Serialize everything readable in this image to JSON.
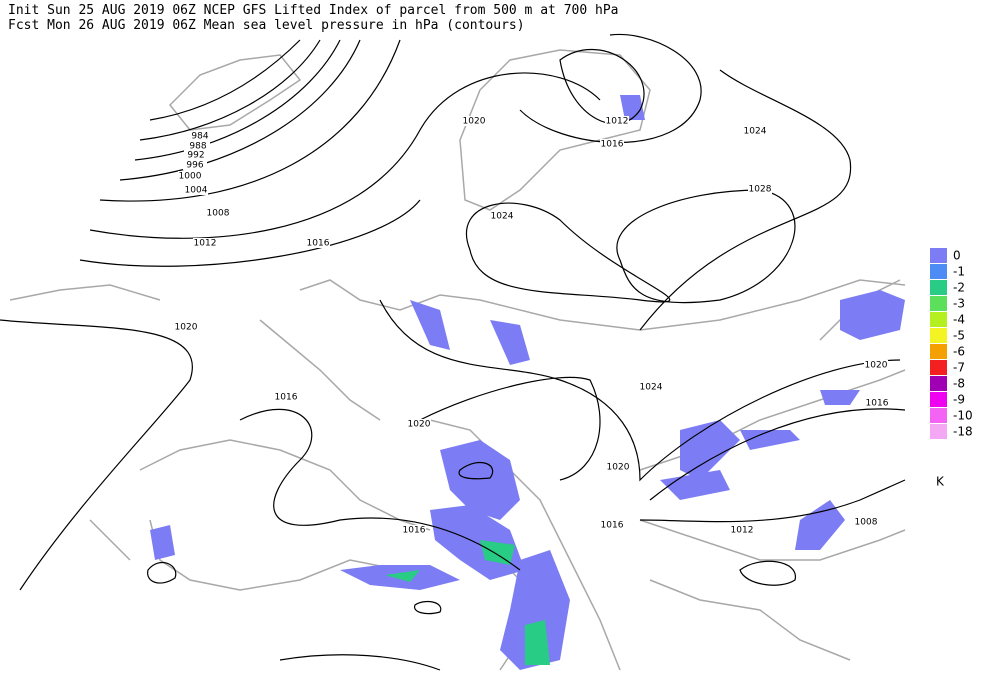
{
  "header": {
    "line1": "Init  Sun 25 AUG 2019 06Z  NCEP GFS Lifted Index of parcel from 500 m at 700 hPa",
    "line2": "Fcst Mon 26 AUG 2019 06Z  Mean sea level pressure in hPa (contours)"
  },
  "legend": {
    "items": [
      {
        "label": 0,
        "color": "#7c7cf4"
      },
      {
        "label": -1,
        "color": "#4c8cf4"
      },
      {
        "label": -2,
        "color": "#28cc84"
      },
      {
        "label": -3,
        "color": "#5ce05c"
      },
      {
        "label": -4,
        "color": "#b4f020"
      },
      {
        "label": -5,
        "color": "#f4f424"
      },
      {
        "label": -6,
        "color": "#f4a000"
      },
      {
        "label": -7,
        "color": "#f42020"
      },
      {
        "label": -8,
        "color": "#a000b4"
      },
      {
        "label": -9,
        "color": "#f000f0"
      },
      {
        "label": -10,
        "color": "#f464f4"
      },
      {
        "label": -18,
        "color": "#f4a8f4"
      }
    ],
    "unit": "K"
  },
  "contour_labels": [
    984,
    988,
    992,
    996,
    1000,
    1004,
    1008,
    1012,
    1016,
    1020,
    1012,
    1016,
    1024,
    1028,
    1024,
    1020,
    1016,
    1020,
    1024,
    1020,
    1016,
    1020,
    1016,
    1016,
    1012,
    1008
  ]
}
